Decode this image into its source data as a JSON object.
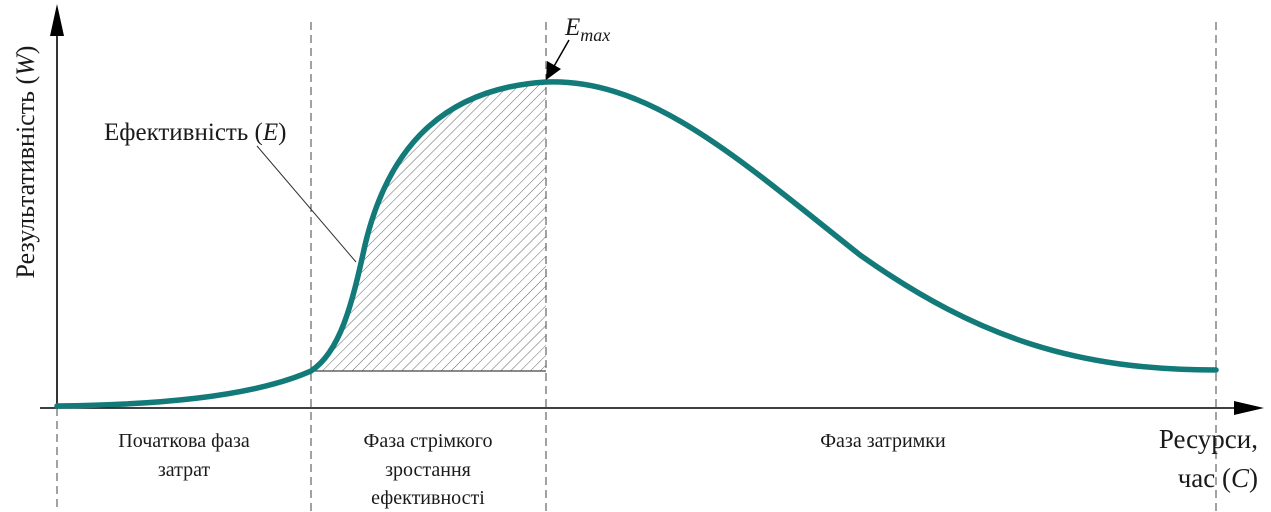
{
  "diagram": {
    "y_axis_label": "Результативність (",
    "y_axis_symbol": "W",
    "y_axis_close": ")",
    "x_axis_label_line1": "Ресурси,",
    "x_axis_label_line2": "час (",
    "x_axis_symbol": "C",
    "x_axis_close": ")",
    "curve_label": "Ефективність (",
    "curve_symbol": "E",
    "curve_close": ")",
    "peak_label_main": "E",
    "peak_label_sub": "max",
    "phases": [
      {
        "lines": [
          "Початкова фаза",
          "затрат"
        ]
      },
      {
        "lines": [
          "Фаза стрімкого",
          "зростання",
          "ефективності"
        ]
      },
      {
        "lines": [
          "Фаза затримки"
        ]
      }
    ],
    "colors": {
      "curve": "#127a78",
      "axis": "#000000",
      "hatch": "#555555"
    }
  }
}
